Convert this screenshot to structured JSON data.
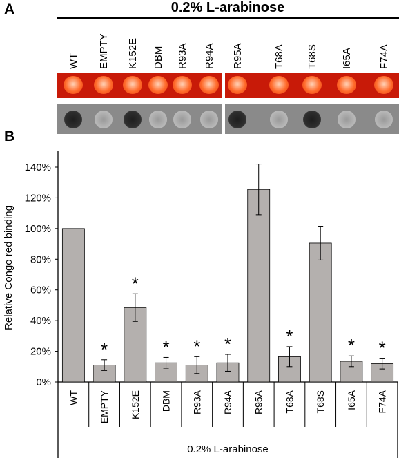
{
  "panel_a": {
    "letter": "A",
    "title": "0.2% L-arabinose",
    "strains": [
      "WT",
      "EMPTY",
      "K152E",
      "DBM",
      "R93A",
      "R94A",
      "R95A",
      "T68A",
      "T68S",
      "I65A",
      "F74A"
    ],
    "colors": {
      "congo_red_plate": "#c81a08",
      "spot_orange": "#ff6a2a",
      "gray_plate": "#8a8a8a"
    },
    "gray_spot_darkness": [
      1,
      0,
      1,
      0,
      0,
      0,
      1,
      0,
      1,
      0,
      0
    ]
  },
  "panel_b": {
    "letter": "B"
  },
  "chart_data": {
    "type": "bar",
    "categories": [
      "WT",
      "EMPTY",
      "K152E",
      "DBM",
      "R93A",
      "R94A",
      "R95A",
      "T68A",
      "T68S",
      "I65A",
      "F74A"
    ],
    "values": [
      100,
      11,
      48.5,
      12.5,
      11,
      12.5,
      125.5,
      16.5,
      90.5,
      13.5,
      12
    ],
    "errors": [
      0,
      3.5,
      9,
      3.5,
      5.5,
      5.5,
      16.5,
      6.5,
      11,
      3.5,
      3.5
    ],
    "significant": [
      false,
      true,
      true,
      true,
      true,
      true,
      false,
      true,
      false,
      true,
      true
    ],
    "significance_marker": "*",
    "ylabel": "Relative Congo red binding",
    "xlabel": "0.2% L-arabinose",
    "ylim": [
      0,
      140
    ],
    "yticks": [
      0,
      20,
      40,
      60,
      80,
      100,
      120,
      140
    ],
    "ytick_labels": [
      "0%",
      "20%",
      "40%",
      "60%",
      "80%",
      "100%",
      "120%",
      "140%"
    ],
    "bar_color": "#b4b0ae",
    "grid": false
  }
}
